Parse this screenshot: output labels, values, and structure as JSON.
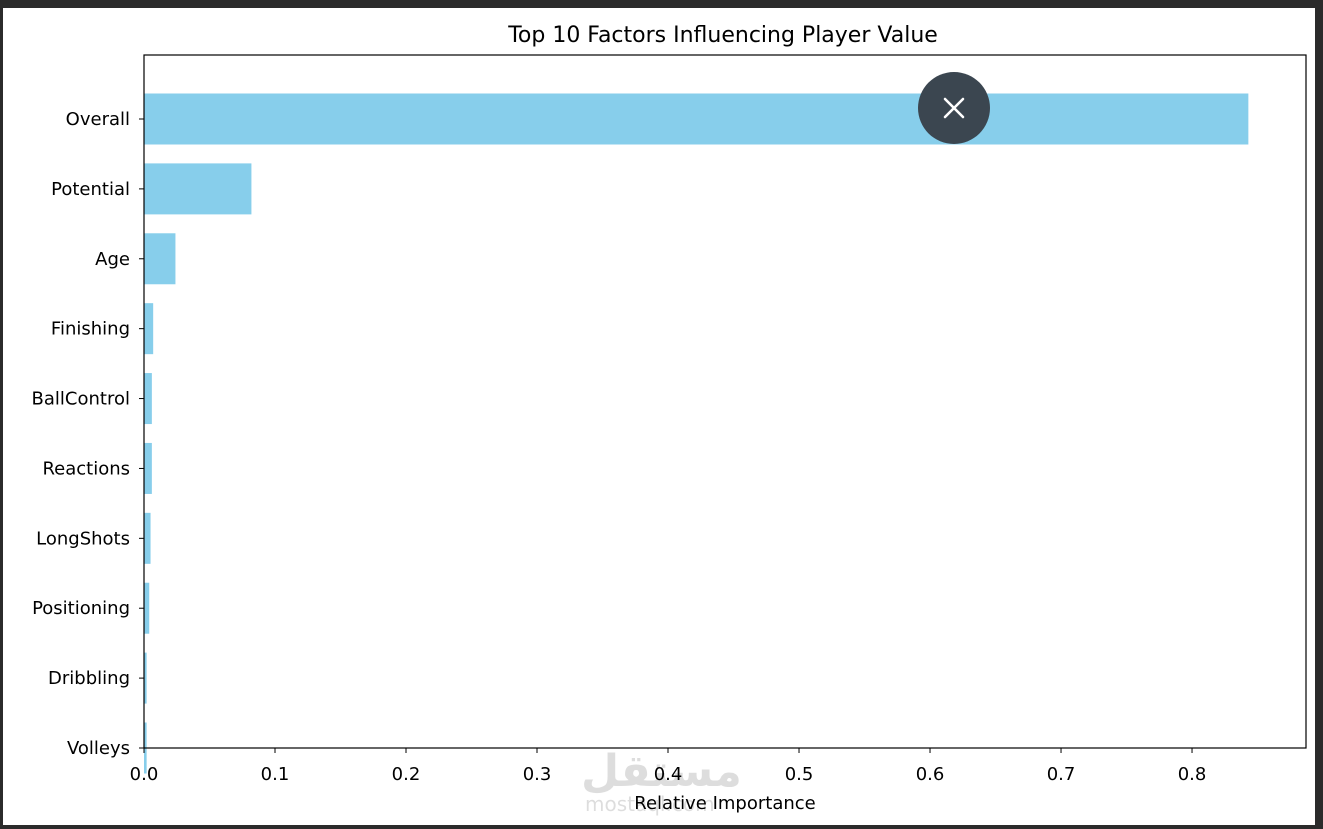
{
  "chart_data": {
    "type": "bar",
    "orientation": "horizontal",
    "title": "Top 10 Factors Influencing Player Value",
    "xlabel": "Relative Importance",
    "ylabel": "",
    "categories": [
      "Overall",
      "Potential",
      "Age",
      "Finishing",
      "BallControl",
      "Reactions",
      "LongShots",
      "Positioning",
      "Dribbling",
      "Volleys"
    ],
    "values": [
      0.843,
      0.082,
      0.024,
      0.007,
      0.006,
      0.006,
      0.005,
      0.004,
      0.002,
      0.002
    ],
    "xlim": [
      0,
      0.887
    ],
    "xticks": [
      "0.0",
      "0.1",
      "0.2",
      "0.3",
      "0.4",
      "0.5",
      "0.6",
      "0.7",
      "0.8"
    ],
    "bar_color": "#87ceeb",
    "grid": false
  },
  "overlay": {
    "close_icon": "close-icon",
    "button_color": "#3b4650"
  },
  "watermark": {
    "arabic": "مستقل",
    "latin": "mostaql.com"
  }
}
